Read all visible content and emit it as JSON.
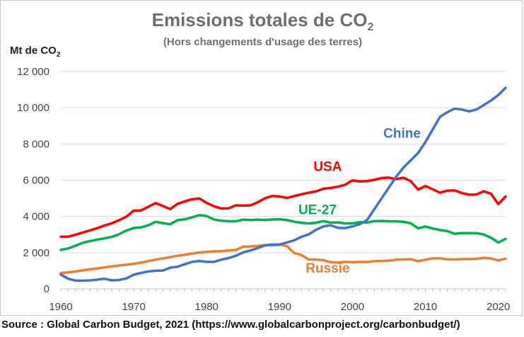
{
  "title_main": "Emissions totales de CO",
  "title_sub": "2",
  "subtitle": "(Hors changements d'usage des terres)",
  "ylabel_main": "Mt de CO",
  "ylabel_sub": "2",
  "source": "Source : Global Carbon Budget, 2021 (https://www.globalcarbonproject.org/carbonbudget/)",
  "chart_data": {
    "type": "line",
    "title": "Emissions totales de CO2",
    "subtitle": "(Hors changements d'usage des terres)",
    "xlabel": "",
    "ylabel": "Mt de CO2",
    "xlim": [
      1960,
      2021
    ],
    "ylim": [
      0,
      12000
    ],
    "grid": true,
    "x_ticks": [
      1960,
      1970,
      1980,
      1990,
      2000,
      2010,
      2020
    ],
    "y_ticks": [
      0,
      2000,
      4000,
      6000,
      8000,
      10000,
      12000
    ],
    "y_tick_labels": [
      "0",
      "2 000",
      "4 000",
      "6 000",
      "8 000",
      "10 000",
      "12 000"
    ],
    "x": [
      1960,
      1961,
      1962,
      1963,
      1964,
      1965,
      1966,
      1967,
      1968,
      1969,
      1970,
      1971,
      1972,
      1973,
      1974,
      1975,
      1976,
      1977,
      1978,
      1979,
      1980,
      1981,
      1982,
      1983,
      1984,
      1985,
      1986,
      1987,
      1988,
      1989,
      1990,
      1991,
      1992,
      1993,
      1994,
      1995,
      1996,
      1997,
      1998,
      1999,
      2000,
      2001,
      2002,
      2003,
      2004,
      2005,
      2006,
      2007,
      2008,
      2009,
      2010,
      2011,
      2012,
      2013,
      2014,
      2015,
      2016,
      2017,
      2018,
      2019,
      2020,
      2021
    ],
    "series": [
      {
        "name": "Chine",
        "color": "#4472c4",
        "values": [
          790,
          560,
          460,
          450,
          470,
          510,
          560,
          470,
          490,
          580,
          780,
          880,
          960,
          1000,
          1010,
          1170,
          1220,
          1360,
          1490,
          1540,
          1490,
          1490,
          1610,
          1700,
          1830,
          2010,
          2120,
          2250,
          2400,
          2450,
          2450,
          2560,
          2680,
          2870,
          3010,
          3260,
          3450,
          3510,
          3370,
          3350,
          3450,
          3570,
          3800,
          4400,
          5000,
          5600,
          6200,
          6700,
          7100,
          7500,
          8100,
          8800,
          9500,
          9750,
          9950,
          9900,
          9800,
          9900,
          10150,
          10400,
          10700,
          11100
        ]
      },
      {
        "name": "USA",
        "color": "#ff0000",
        "values": [
          2880,
          2880,
          2990,
          3110,
          3230,
          3350,
          3500,
          3620,
          3790,
          3990,
          4320,
          4330,
          4530,
          4740,
          4580,
          4400,
          4690,
          4830,
          4950,
          4990,
          4750,
          4560,
          4440,
          4440,
          4610,
          4600,
          4610,
          4780,
          5000,
          5130,
          5100,
          5020,
          5120,
          5220,
          5310,
          5380,
          5530,
          5570,
          5640,
          5750,
          5990,
          5930,
          5950,
          6020,
          6120,
          6140,
          6060,
          6140,
          5940,
          5480,
          5680,
          5500,
          5310,
          5420,
          5440,
          5290,
          5200,
          5210,
          5390,
          5250,
          4680,
          5100
        ]
      },
      {
        "name": "UE-27",
        "color": "#00b050",
        "values": [
          2150,
          2230,
          2380,
          2540,
          2640,
          2720,
          2790,
          2870,
          3020,
          3220,
          3360,
          3390,
          3510,
          3700,
          3630,
          3570,
          3790,
          3840,
          3950,
          4070,
          4020,
          3830,
          3760,
          3740,
          3730,
          3820,
          3800,
          3820,
          3800,
          3830,
          3840,
          3800,
          3710,
          3650,
          3610,
          3650,
          3740,
          3660,
          3670,
          3610,
          3620,
          3680,
          3660,
          3740,
          3750,
          3730,
          3730,
          3700,
          3620,
          3340,
          3440,
          3330,
          3250,
          3190,
          3040,
          3080,
          3080,
          3080,
          3000,
          2820,
          2560,
          2760
        ]
      },
      {
        "name": "Russie",
        "color": "#ed7d31",
        "values": [
          880,
          910,
          960,
          1020,
          1080,
          1130,
          1190,
          1240,
          1290,
          1330,
          1380,
          1450,
          1530,
          1610,
          1680,
          1750,
          1830,
          1880,
          1950,
          2010,
          2040,
          2070,
          2080,
          2120,
          2150,
          2330,
          2340,
          2370,
          2420,
          2400,
          2440,
          2360,
          1980,
          1870,
          1620,
          1610,
          1590,
          1470,
          1450,
          1490,
          1470,
          1490,
          1480,
          1530,
          1540,
          1560,
          1610,
          1620,
          1640,
          1530,
          1610,
          1680,
          1690,
          1630,
          1620,
          1640,
          1640,
          1660,
          1710,
          1680,
          1570,
          1670
        ]
      }
    ],
    "series_labels": [
      {
        "name": "Chine",
        "anchor_x": 2006.8,
        "anchor_y": 8350
      },
      {
        "name": "USA",
        "anchor_x": 1996.6,
        "anchor_y": 6500
      },
      {
        "name": "UE-27",
        "anchor_x": 1995.2,
        "anchor_y": 4120
      },
      {
        "name": "Russie",
        "anchor_x": 1996.6,
        "anchor_y": 900
      }
    ]
  }
}
